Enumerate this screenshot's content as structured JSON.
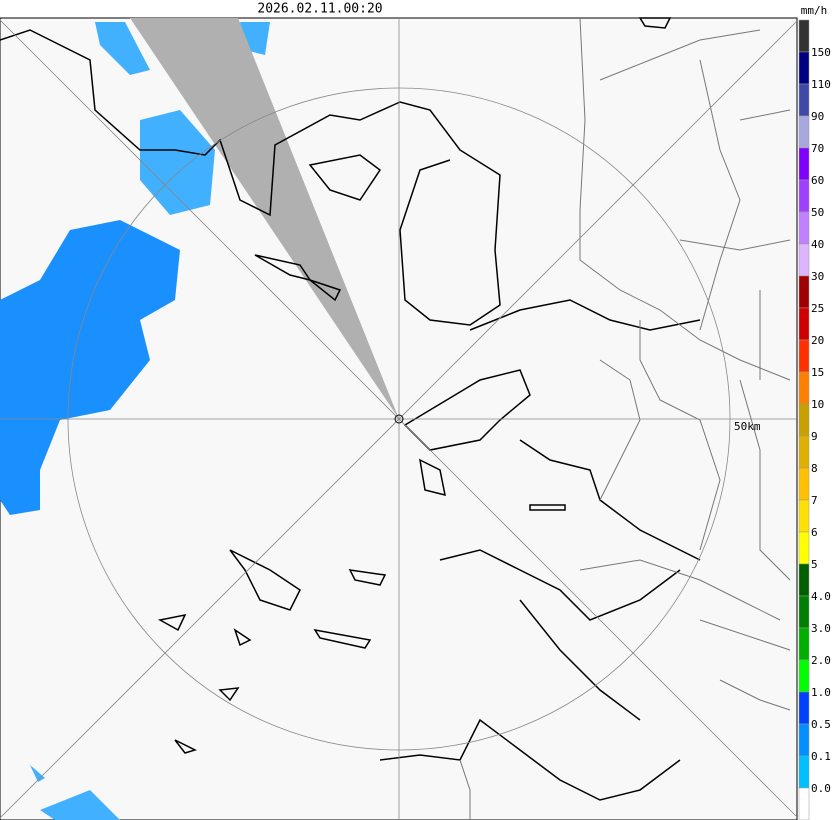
{
  "timestamp": "2026.02.11.00:20",
  "range_label": "50km",
  "legend": {
    "unit": "mm/h",
    "labels": [
      "150",
      "110",
      "90",
      "70",
      "60",
      "50",
      "40",
      "30",
      "25",
      "20",
      "15",
      "10",
      "9",
      "8",
      "7",
      "6",
      "5",
      "4.0",
      "3.0",
      "2.0",
      "1.0",
      "0.5",
      "0.1",
      "0.0"
    ],
    "colors": [
      "#333333",
      "#000080",
      "#4048a8",
      "#a8a8e0",
      "#8000ff",
      "#a040ff",
      "#c080ff",
      "#dcb4ff",
      "#a00000",
      "#d00000",
      "#ff3000",
      "#ff8000",
      "#c8a000",
      "#e0b000",
      "#ffc000",
      "#ffe000",
      "#ffff00",
      "#006000",
      "#008000",
      "#00b000",
      "#00ff00",
      "#0040ff",
      "#0090ff",
      "#00c0ff",
      "#ffffff"
    ]
  }
}
